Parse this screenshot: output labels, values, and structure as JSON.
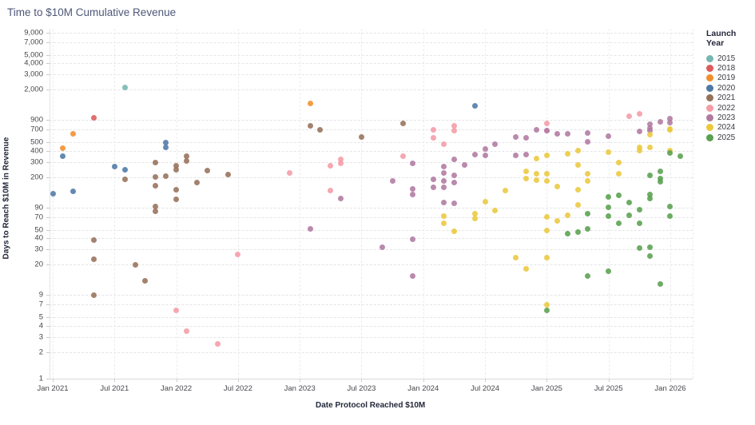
{
  "chart_data": {
    "type": "scatter",
    "title": "Time to $10M Cumulative Revenue",
    "xlabel": "Date Protocol Reached $10M",
    "ylabel": "Days to Reach $10M in Revenue",
    "legend_title": "Launch Year",
    "y_scale": "log",
    "y_ticks": [
      9000,
      7000,
      5000,
      4000,
      3000,
      2000,
      900,
      700,
      500,
      400,
      300,
      200,
      90,
      70,
      50,
      40,
      30,
      20,
      9,
      7,
      5,
      4,
      3,
      2,
      1
    ],
    "x_ticks": [
      "Jan 2021",
      "Jul 2021",
      "Jan 2022",
      "Jul 2022",
      "Jan 2023",
      "Jul 2023",
      "Jan 2024",
      "Jul 2024",
      "Jan 2025",
      "Jul 2025",
      "Jan 2026"
    ],
    "x_range": [
      "2021-01",
      "2026-04"
    ],
    "y_range": [
      1,
      10000
    ],
    "grid": true,
    "legend_position": "right",
    "series": [
      {
        "name": "2015",
        "color": "#76b7b2",
        "points": [
          [
            "2021-08",
            2100
          ]
        ]
      },
      {
        "name": "2018",
        "color": "#dd5a5c",
        "points": [
          [
            "2021-05",
            950
          ]
        ]
      },
      {
        "name": "2019",
        "color": "#f28e2b",
        "points": [
          [
            "2021-02",
            430
          ],
          [
            "2021-03",
            620
          ],
          [
            "2023-02",
            1390
          ]
        ]
      },
      {
        "name": "2020",
        "color": "#4e79a7",
        "points": [
          [
            "2021-01",
            130
          ],
          [
            "2021-02",
            350
          ],
          [
            "2021-03",
            137
          ],
          [
            "2021-07",
            265
          ],
          [
            "2021-08",
            245
          ],
          [
            "2021-12",
            500
          ],
          [
            "2021-12",
            440
          ],
          [
            "2024-06",
            1300
          ]
        ]
      },
      {
        "name": "2021",
        "color": "#96715a",
        "points": [
          [
            "2021-05",
            38
          ],
          [
            "2021-05",
            23
          ],
          [
            "2021-05",
            9
          ],
          [
            "2021-08",
            190
          ],
          [
            "2021-09",
            20
          ],
          [
            "2021-10",
            13
          ],
          [
            "2021-11",
            295
          ],
          [
            "2021-11",
            200
          ],
          [
            "2021-11",
            160
          ],
          [
            "2021-11",
            92
          ],
          [
            "2021-11",
            81
          ],
          [
            "2021-12",
            205
          ],
          [
            "2022-01",
            270
          ],
          [
            "2022-01",
            245
          ],
          [
            "2022-01",
            144
          ],
          [
            "2022-01",
            111
          ],
          [
            "2022-02",
            350
          ],
          [
            "2022-02",
            305
          ],
          [
            "2022-03",
            175
          ],
          [
            "2022-04",
            240
          ],
          [
            "2022-06",
            215
          ],
          [
            "2023-02",
            770
          ],
          [
            "2023-03",
            690
          ],
          [
            "2023-07",
            570
          ],
          [
            "2023-11",
            820
          ]
        ]
      },
      {
        "name": "2022",
        "color": "#f59ba6",
        "points": [
          [
            "2022-01",
            6
          ],
          [
            "2022-02",
            3.5
          ],
          [
            "2022-05",
            2.5
          ],
          [
            "2022-07",
            26
          ],
          [
            "2022-12",
            225
          ],
          [
            "2023-04",
            270
          ],
          [
            "2023-04",
            140
          ],
          [
            "2023-05",
            320
          ],
          [
            "2023-05",
            290
          ],
          [
            "2023-11",
            350
          ],
          [
            "2024-02",
            690
          ],
          [
            "2024-02",
            560
          ],
          [
            "2024-03",
            480
          ],
          [
            "2024-04",
            770
          ],
          [
            "2024-04",
            680
          ],
          [
            "2025-01",
            820
          ],
          [
            "2025-01",
            680
          ],
          [
            "2025-09",
            990
          ],
          [
            "2025-10",
            1050
          ]
        ]
      },
      {
        "name": "2023",
        "color": "#b07aa1",
        "points": [
          [
            "2023-02",
            51
          ],
          [
            "2023-05",
            113
          ],
          [
            "2023-09",
            32
          ],
          [
            "2023-10",
            180
          ],
          [
            "2023-12",
            290
          ],
          [
            "2023-12",
            147
          ],
          [
            "2023-12",
            126
          ],
          [
            "2023-12",
            39
          ],
          [
            "2023-12",
            15
          ],
          [
            "2024-02",
            190
          ],
          [
            "2024-02",
            153
          ],
          [
            "2024-03",
            265
          ],
          [
            "2024-03",
            225
          ],
          [
            "2024-03",
            180
          ],
          [
            "2024-03",
            153
          ],
          [
            "2024-03",
            102
          ],
          [
            "2024-04",
            320
          ],
          [
            "2024-04",
            210
          ],
          [
            "2024-04",
            175
          ],
          [
            "2024-04",
            100
          ],
          [
            "2024-05",
            277
          ],
          [
            "2024-06",
            365
          ],
          [
            "2024-07",
            420
          ],
          [
            "2024-07",
            355
          ],
          [
            "2024-08",
            480
          ],
          [
            "2024-10",
            580
          ],
          [
            "2024-10",
            355
          ],
          [
            "2024-11",
            560
          ],
          [
            "2024-11",
            365
          ],
          [
            "2024-12",
            690
          ],
          [
            "2025-01",
            675
          ],
          [
            "2025-02",
            620
          ],
          [
            "2025-03",
            620
          ],
          [
            "2025-05",
            645
          ],
          [
            "2025-05",
            510
          ],
          [
            "2025-07",
            585
          ],
          [
            "2025-10",
            660
          ],
          [
            "2025-11",
            800
          ],
          [
            "2025-11",
            730
          ],
          [
            "2025-11",
            680
          ],
          [
            "2025-12",
            855
          ],
          [
            "2026-01",
            930
          ],
          [
            "2026-01",
            840
          ]
        ]
      },
      {
        "name": "2024",
        "color": "#ebc83d",
        "points": [
          [
            "2024-03",
            72
          ],
          [
            "2024-03",
            60
          ],
          [
            "2024-04",
            48
          ],
          [
            "2024-06",
            76
          ],
          [
            "2024-06",
            68
          ],
          [
            "2024-07",
            105
          ],
          [
            "2024-08",
            83
          ],
          [
            "2024-09",
            140
          ],
          [
            "2024-10",
            24
          ],
          [
            "2024-11",
            235
          ],
          [
            "2024-11",
            195
          ],
          [
            "2024-11",
            18
          ],
          [
            "2024-12",
            325
          ],
          [
            "2024-12",
            220
          ],
          [
            "2024-12",
            185
          ],
          [
            "2025-01",
            355
          ],
          [
            "2025-01",
            220
          ],
          [
            "2025-01",
            180
          ],
          [
            "2025-01",
            71
          ],
          [
            "2025-01",
            49
          ],
          [
            "2025-01",
            24
          ],
          [
            "2025-01",
            7
          ],
          [
            "2025-02",
            156
          ],
          [
            "2025-02",
            64
          ],
          [
            "2025-03",
            370
          ],
          [
            "2025-03",
            74
          ],
          [
            "2025-04",
            400
          ],
          [
            "2025-04",
            277
          ],
          [
            "2025-04",
            144
          ],
          [
            "2025-04",
            97
          ],
          [
            "2025-05",
            220
          ],
          [
            "2025-05",
            180
          ],
          [
            "2025-07",
            390
          ],
          [
            "2025-08",
            295
          ],
          [
            "2025-08",
            220
          ],
          [
            "2025-10",
            440
          ],
          [
            "2025-10",
            400
          ],
          [
            "2025-11",
            610
          ],
          [
            "2025-11",
            435
          ],
          [
            "2026-01",
            700
          ],
          [
            "2026-01",
            710
          ],
          [
            "2026-01",
            400
          ]
        ]
      },
      {
        "name": "2025",
        "color": "#59a14f",
        "points": [
          [
            "2025-01",
            6
          ],
          [
            "2025-03",
            45
          ],
          [
            "2025-04",
            47
          ],
          [
            "2025-05",
            77
          ],
          [
            "2025-05",
            51
          ],
          [
            "2025-05",
            15
          ],
          [
            "2025-07",
            118
          ],
          [
            "2025-07",
            90
          ],
          [
            "2025-07",
            72
          ],
          [
            "2025-07",
            17
          ],
          [
            "2025-08",
            124
          ],
          [
            "2025-08",
            59
          ],
          [
            "2025-09",
            102
          ],
          [
            "2025-09",
            74
          ],
          [
            "2025-10",
            85
          ],
          [
            "2025-10",
            59
          ],
          [
            "2025-10",
            31
          ],
          [
            "2025-11",
            210
          ],
          [
            "2025-11",
            126
          ],
          [
            "2025-11",
            115
          ],
          [
            "2025-11",
            32
          ],
          [
            "2025-11",
            25
          ],
          [
            "2025-12",
            235
          ],
          [
            "2025-12",
            195
          ],
          [
            "2025-12",
            178
          ],
          [
            "2025-12",
            12
          ],
          [
            "2026-01",
            380
          ],
          [
            "2026-01",
            92
          ],
          [
            "2026-01",
            72
          ],
          [
            "2026-02",
            350
          ]
        ]
      }
    ]
  }
}
